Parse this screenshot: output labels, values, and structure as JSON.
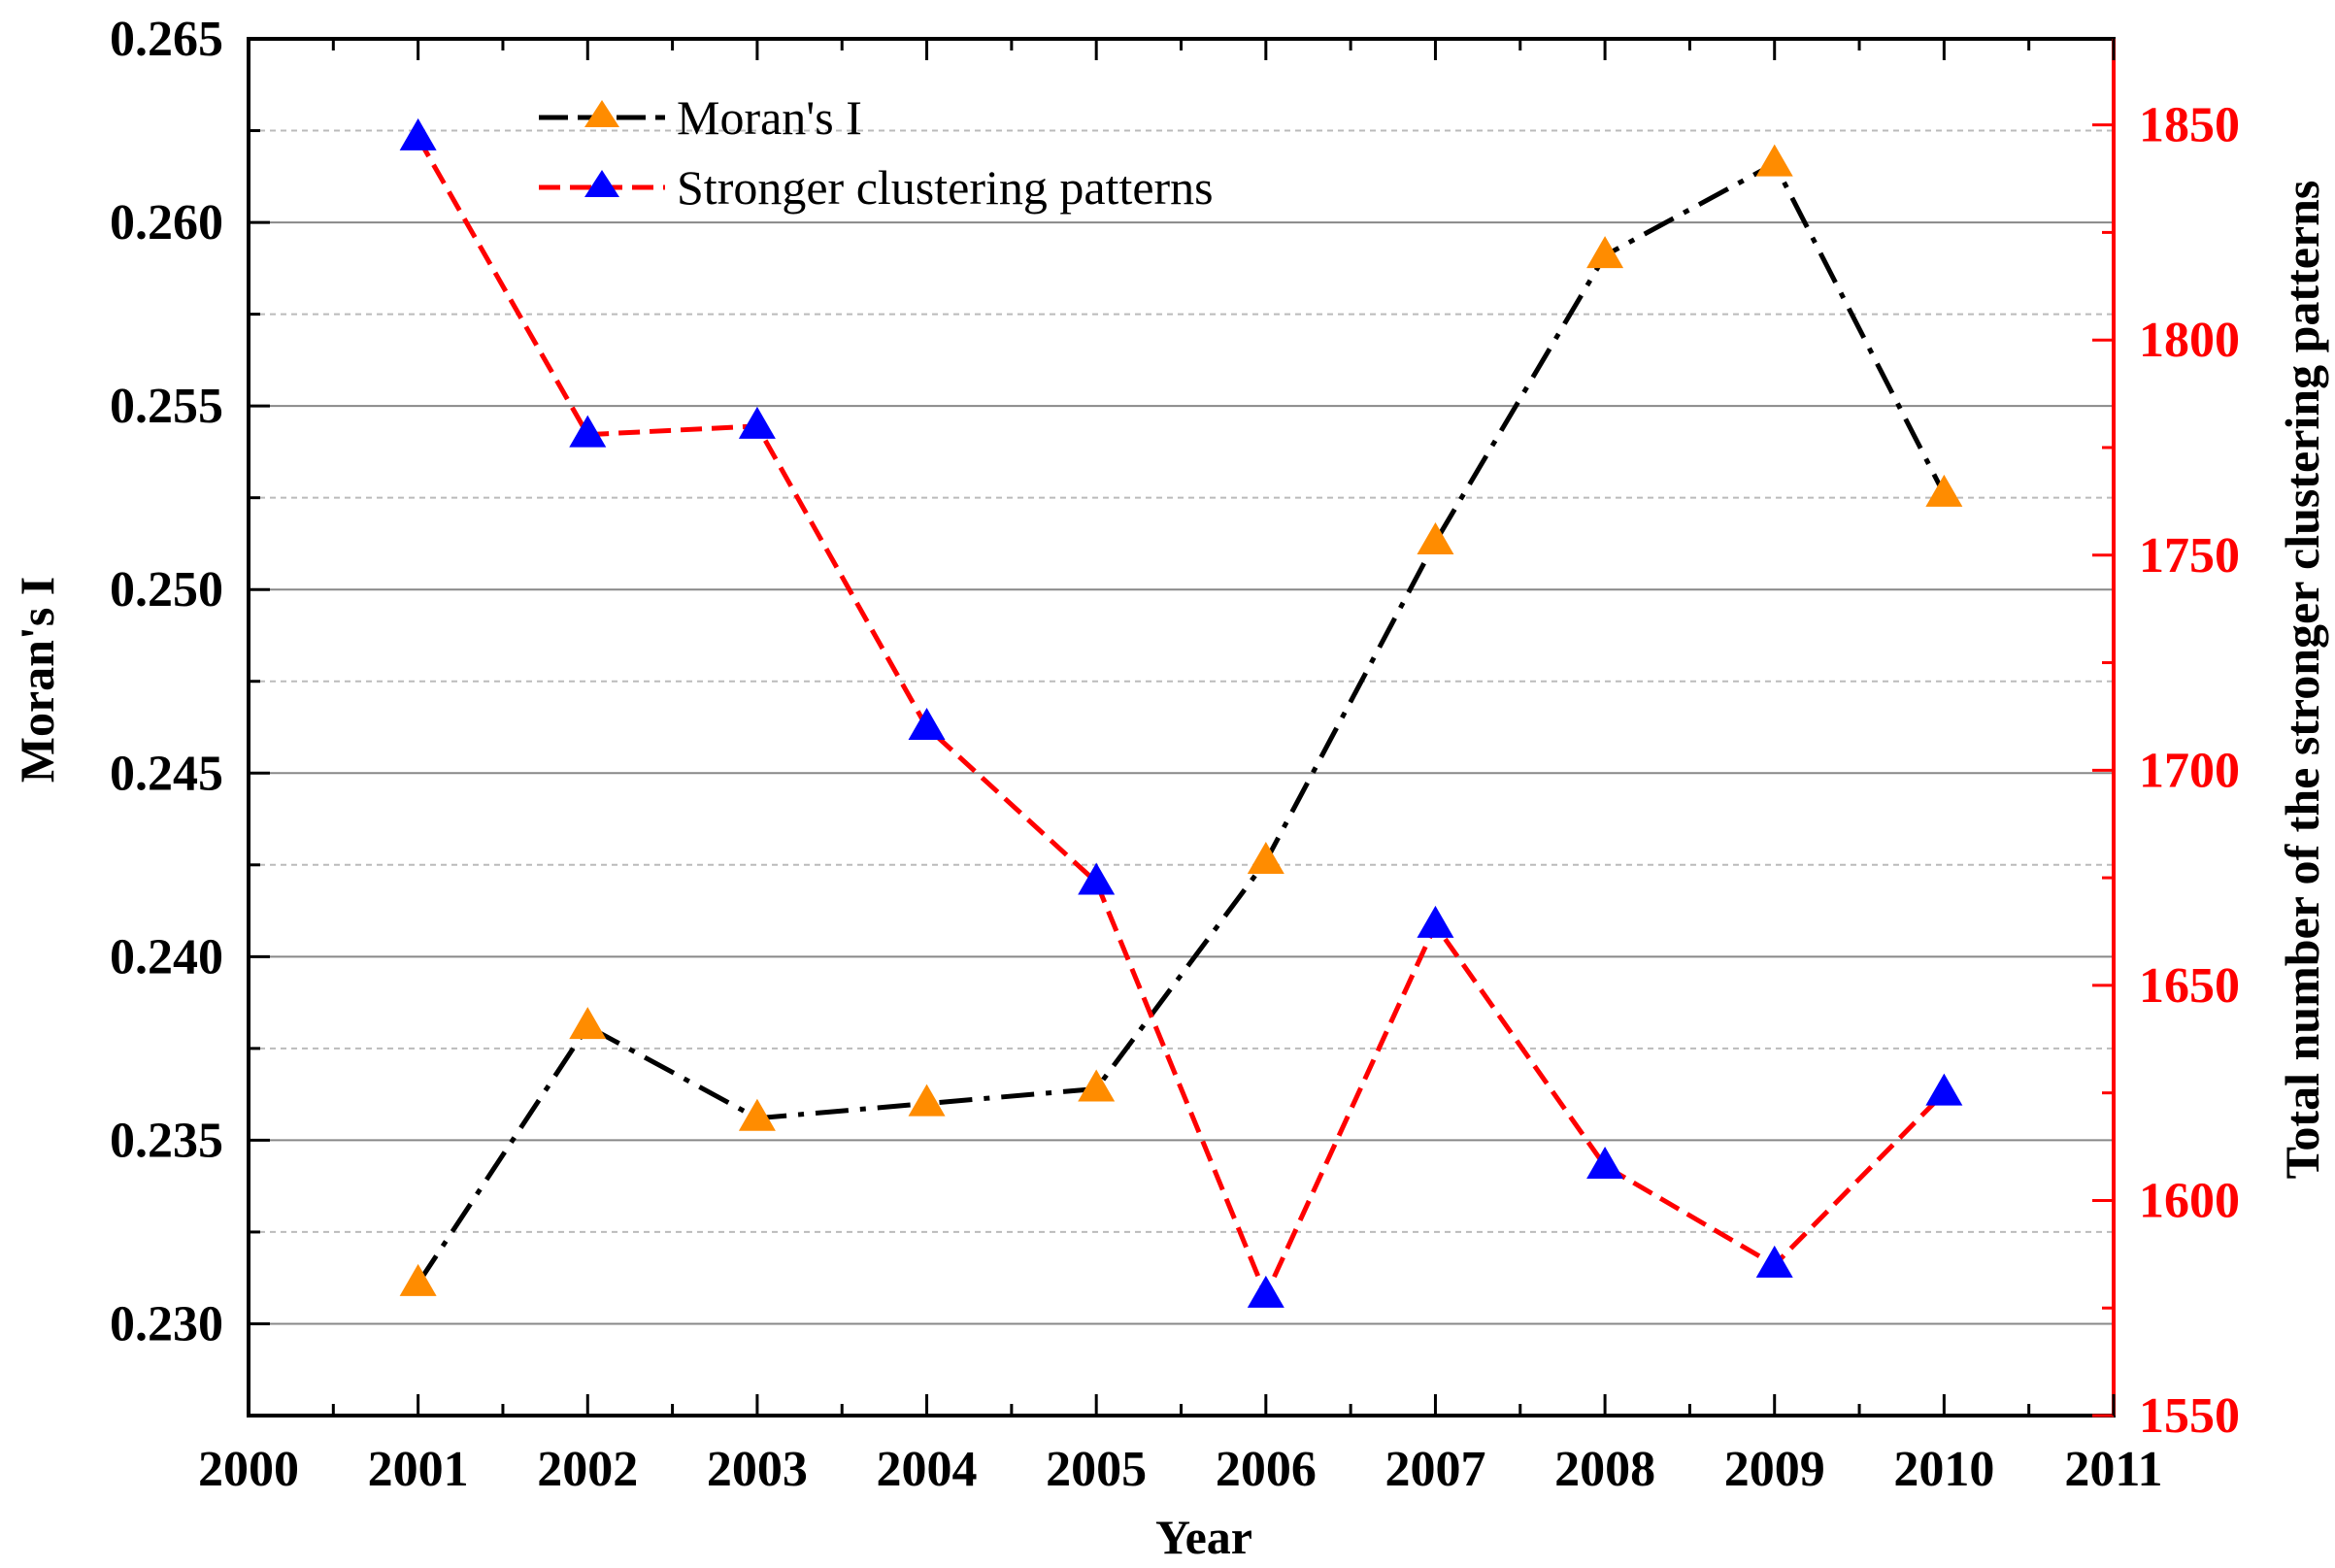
{
  "chart_data": {
    "type": "line",
    "xlabel": "Year",
    "ylabel": "Moran's I",
    "y2label": "Total number of the stronger clustering patterns",
    "xlim": [
      2000,
      2011
    ],
    "ylim": [
      0.2275,
      0.265
    ],
    "y2lim": [
      1550,
      1870
    ],
    "x_ticks": [
      2000,
      2001,
      2002,
      2003,
      2004,
      2005,
      2006,
      2007,
      2008,
      2009,
      2010,
      2011
    ],
    "y_ticks": [
      "0.230",
      "0.235",
      "0.240",
      "0.245",
      "0.250",
      "0.255",
      "0.260",
      "0.265"
    ],
    "y2_ticks": [
      1550,
      1600,
      1650,
      1700,
      1750,
      1800,
      1850
    ],
    "grid": true,
    "legend_position": "top-left",
    "series": [
      {
        "name": "Moran's I",
        "axis": "left",
        "line_color": "#000000",
        "marker_color": "#ff8c00",
        "line_style": "dash-dot",
        "x": [
          2001,
          2002,
          2003,
          2004,
          2005,
          2006,
          2007,
          2008,
          2009,
          2010
        ],
        "values": [
          0.2311,
          0.2381,
          0.2356,
          0.236,
          0.2364,
          0.2426,
          0.2513,
          0.2591,
          0.2616,
          0.2526
        ]
      },
      {
        "name": "Stronger clustering patterns",
        "axis": "right",
        "line_color": "#ff0000",
        "marker_color": "#0000ff",
        "line_style": "dashed",
        "x": [
          2001,
          2002,
          2003,
          2004,
          2005,
          2006,
          2007,
          2008,
          2009,
          2010
        ],
        "values": [
          1847,
          1778,
          1780,
          1710,
          1674,
          1578,
          1664,
          1608,
          1585,
          1625
        ]
      }
    ]
  }
}
